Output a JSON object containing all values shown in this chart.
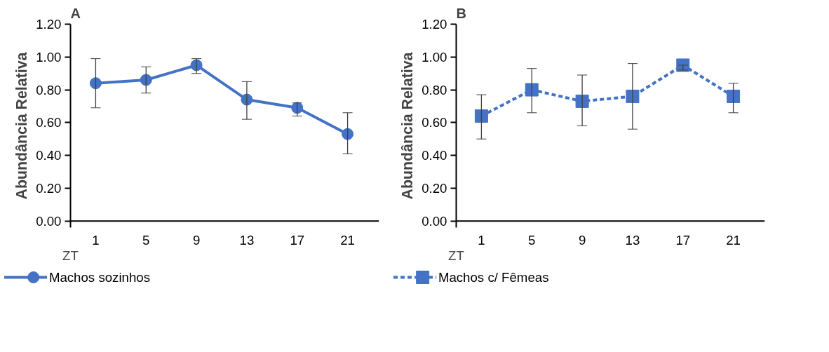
{
  "chart_data": [
    {
      "type": "line",
      "title": "A",
      "xlabel": "ZT",
      "ylabel": "Abundância Relativa",
      "x": [
        1,
        5,
        9,
        13,
        17,
        21
      ],
      "xlim": [
        -1,
        23.5
      ],
      "xticks": [
        1,
        5,
        9,
        13,
        17,
        21
      ],
      "ylim": [
        -0.04,
        1.2
      ],
      "yticks": [
        {
          "value": 0,
          "label": "0.00"
        },
        {
          "value": 0.2,
          "label": "0.20"
        },
        {
          "value": 0.4,
          "label": "0.40"
        },
        {
          "value": 0.6,
          "label": "0.60"
        },
        {
          "value": 0.8,
          "label": "0.80"
        },
        {
          "value": 1,
          "label": "1.00"
        },
        {
          "value": 1.2,
          "label": "1.20"
        }
      ],
      "marker": "circle",
      "line_style": "solid",
      "legend": "bottom",
      "grid": false,
      "series": [
        {
          "name": "Machos sozinhos",
          "color": "#4472c4",
          "values": [
            0.84,
            0.86,
            0.95,
            0.74,
            0.69,
            0.53
          ],
          "errors": [
            [
              0.69,
              0.99
            ],
            [
              0.78,
              0.94
            ],
            [
              0.9,
              0.99
            ],
            [
              0.62,
              0.85
            ],
            [
              0.64,
              0.72
            ],
            [
              0.41,
              0.66
            ]
          ]
        }
      ]
    },
    {
      "type": "line",
      "title": "B",
      "xlabel": "ZT",
      "ylabel": "Abundância Relativa",
      "x": [
        1,
        5,
        9,
        13,
        17,
        21
      ],
      "xlim": [
        -1,
        23.5
      ],
      "xticks": [
        1,
        5,
        9,
        13,
        17,
        21
      ],
      "ylim": [
        -0.04,
        1.2
      ],
      "yticks": [
        {
          "value": 0,
          "label": "0.00"
        },
        {
          "value": 0.2,
          "label": "0.20"
        },
        {
          "value": 0.4,
          "label": "0.40"
        },
        {
          "value": 0.6,
          "label": "0.60"
        },
        {
          "value": 0.8,
          "label": "0.80"
        },
        {
          "value": 1,
          "label": "1.00"
        },
        {
          "value": 1.2,
          "label": "1.20"
        }
      ],
      "marker": "square",
      "line_style": "dashed",
      "legend": "bottom",
      "grid": false,
      "series": [
        {
          "name": "Machos c/ Fêmeas",
          "color": "#4472c4",
          "values": [
            0.64,
            0.8,
            0.73,
            0.76,
            0.95,
            0.76
          ],
          "errors": [
            [
              0.5,
              0.77
            ],
            [
              0.66,
              0.93
            ],
            [
              0.58,
              0.89
            ],
            [
              0.56,
              0.96
            ],
            [
              0.92,
              0.95
            ],
            [
              0.66,
              0.84
            ]
          ]
        }
      ]
    }
  ]
}
